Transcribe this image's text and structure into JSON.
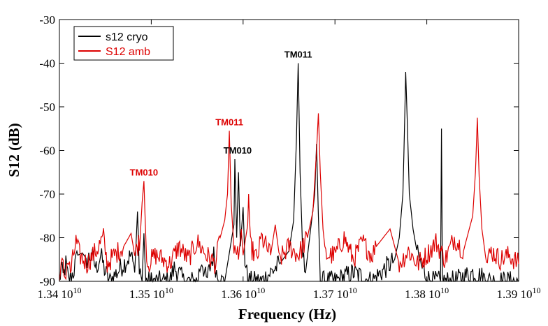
{
  "chart_data": {
    "type": "line",
    "title": "",
    "xlabel": "Frequency (Hz)",
    "ylabel": "S12 (dB)",
    "xlim": [
      13400000000,
      13900000000
    ],
    "ylim": [
      -90,
      -30
    ],
    "grid": false,
    "x_ticks": [
      {
        "value": 13400000000,
        "mantissa": "1.34",
        "base": "10",
        "exponent": "10"
      },
      {
        "value": 13500000000,
        "mantissa": "1.35",
        "base": "10",
        "exponent": "10"
      },
      {
        "value": 13600000000,
        "mantissa": "1.36",
        "base": "10",
        "exponent": "10"
      },
      {
        "value": 13700000000,
        "mantissa": "1.37",
        "base": "10",
        "exponent": "10"
      },
      {
        "value": 13800000000,
        "mantissa": "1.38",
        "base": "10",
        "exponent": "10"
      },
      {
        "value": 13900000000,
        "mantissa": "1.39",
        "base": "10",
        "exponent": "10"
      }
    ],
    "y_ticks": [
      {
        "value": -30,
        "label": "-30"
      },
      {
        "value": -40,
        "label": "-40"
      },
      {
        "value": -50,
        "label": "-50"
      },
      {
        "value": -60,
        "label": "-60"
      },
      {
        "value": -70,
        "label": "-70"
      },
      {
        "value": -80,
        "label": "-80"
      },
      {
        "value": -90,
        "label": "-90"
      }
    ],
    "legend": {
      "placement": "top-left"
    },
    "series": [
      {
        "name": "s12 cryo",
        "color": "#000000",
        "noise_floor": -90,
        "points": [
          [
            13400000000,
            -90
          ],
          [
            13402000000,
            -87
          ],
          [
            13404000000,
            -89
          ],
          [
            13407000000,
            -86
          ],
          [
            13410000000,
            -90
          ],
          [
            13415000000,
            -88
          ],
          [
            13420000000,
            -84
          ],
          [
            13425000000,
            -83.5
          ],
          [
            13430000000,
            -85
          ],
          [
            13435000000,
            -84
          ],
          [
            13440000000,
            -87
          ],
          [
            13445000000,
            -84
          ],
          [
            13450000000,
            -88
          ],
          [
            13455000000,
            -90
          ],
          [
            13470000000,
            -86
          ],
          [
            13478000000,
            -84
          ],
          [
            13482000000,
            -88
          ],
          [
            13485000000,
            -74
          ],
          [
            13487000000,
            -86
          ],
          [
            13490000000,
            -90
          ],
          [
            13492000000,
            -79
          ],
          [
            13494000000,
            -90
          ],
          [
            13500000000,
            -90
          ],
          [
            13520000000,
            -90
          ],
          [
            13525000000,
            -87
          ],
          [
            13530000000,
            -88
          ],
          [
            13535000000,
            -90
          ],
          [
            13550000000,
            -90
          ],
          [
            13555000000,
            -85
          ],
          [
            13560000000,
            -90
          ],
          [
            13565000000,
            -86
          ],
          [
            13568000000,
            -84
          ],
          [
            13571000000,
            -88
          ],
          [
            13574000000,
            -90
          ],
          [
            13580000000,
            -90
          ],
          [
            13590000000,
            -77
          ],
          [
            13591000000,
            -62
          ],
          [
            13593000000,
            -80
          ],
          [
            13595000000,
            -65
          ],
          [
            13597000000,
            -82
          ],
          [
            13600000000,
            -73
          ],
          [
            13602000000,
            -85
          ],
          [
            13605000000,
            -90
          ],
          [
            13620000000,
            -90
          ],
          [
            13640000000,
            -86
          ],
          [
            13650000000,
            -83
          ],
          [
            13655000000,
            -76
          ],
          [
            13658000000,
            -58
          ],
          [
            13660000000,
            -40
          ],
          [
            13662000000,
            -65
          ],
          [
            13665000000,
            -84
          ],
          [
            13668000000,
            -88
          ],
          [
            13678000000,
            -70
          ],
          [
            13680000000,
            -58.5
          ],
          [
            13682000000,
            -75
          ],
          [
            13684000000,
            -89
          ],
          [
            13686000000,
            -90
          ],
          [
            13700000000,
            -90
          ],
          [
            13720000000,
            -88
          ],
          [
            13740000000,
            -90
          ],
          [
            13760000000,
            -86
          ],
          [
            13765000000,
            -85
          ],
          [
            13770000000,
            -80
          ],
          [
            13774000000,
            -70
          ],
          [
            13776000000,
            -52
          ],
          [
            13777000000,
            -42
          ],
          [
            13779000000,
            -55
          ],
          [
            13781000000,
            -70
          ],
          [
            13785000000,
            -78
          ],
          [
            13790000000,
            -84
          ],
          [
            13795000000,
            -87
          ],
          [
            13800000000,
            -89
          ],
          [
            13805000000,
            -90
          ],
          [
            13815000000,
            -90
          ],
          [
            13816000000,
            -55
          ],
          [
            13817000000,
            -90
          ],
          [
            13830000000,
            -90
          ],
          [
            13850000000,
            -88
          ],
          [
            13870000000,
            -90
          ],
          [
            13900000000,
            -90
          ]
        ]
      },
      {
        "name": "S12 amb",
        "color": "#dd0000",
        "noise_floor": -86,
        "points": [
          [
            13400000000,
            -90
          ],
          [
            13403000000,
            -86
          ],
          [
            13406000000,
            -89
          ],
          [
            13409000000,
            -85
          ],
          [
            13412000000,
            -88
          ],
          [
            13418000000,
            -81
          ],
          [
            13422000000,
            -84
          ],
          [
            13430000000,
            -86
          ],
          [
            13440000000,
            -83
          ],
          [
            13448000000,
            -80
          ],
          [
            13452000000,
            -86
          ],
          [
            13460000000,
            -84
          ],
          [
            13470000000,
            -82
          ],
          [
            13478000000,
            -79
          ],
          [
            13482000000,
            -84
          ],
          [
            13488000000,
            -80
          ],
          [
            13490000000,
            -72
          ],
          [
            13492000000,
            -67
          ],
          [
            13494000000,
            -80
          ],
          [
            13496000000,
            -86
          ],
          [
            13505000000,
            -84
          ],
          [
            13520000000,
            -86
          ],
          [
            13530000000,
            -82
          ],
          [
            13540000000,
            -85
          ],
          [
            13550000000,
            -81
          ],
          [
            13560000000,
            -84
          ],
          [
            13570000000,
            -86
          ],
          [
            13575000000,
            -80
          ],
          [
            13580000000,
            -76
          ],
          [
            13583000000,
            -70
          ],
          [
            13585000000,
            -55.5
          ],
          [
            13587000000,
            -72
          ],
          [
            13590000000,
            -82
          ],
          [
            13595000000,
            -85
          ],
          [
            13598000000,
            -78
          ],
          [
            13600000000,
            -84
          ],
          [
            13605000000,
            -77
          ],
          [
            13606000000,
            -70
          ],
          [
            13608000000,
            -82
          ],
          [
            13615000000,
            -85
          ],
          [
            13620000000,
            -80
          ],
          [
            13630000000,
            -84
          ],
          [
            13635000000,
            -77
          ],
          [
            13640000000,
            -85
          ],
          [
            13650000000,
            -82
          ],
          [
            13660000000,
            -84
          ],
          [
            13670000000,
            -80
          ],
          [
            13676000000,
            -74
          ],
          [
            13680000000,
            -60
          ],
          [
            13682000000,
            -51.5
          ],
          [
            13684000000,
            -65
          ],
          [
            13687000000,
            -78
          ],
          [
            13690000000,
            -84
          ],
          [
            13700000000,
            -84
          ],
          [
            13710000000,
            -80
          ],
          [
            13720000000,
            -85
          ],
          [
            13730000000,
            -81
          ],
          [
            13740000000,
            -84
          ],
          [
            13745000000,
            -82
          ],
          [
            13760000000,
            -78
          ],
          [
            13770000000,
            -86
          ],
          [
            13780000000,
            -83
          ],
          [
            13790000000,
            -86
          ],
          [
            13800000000,
            -84
          ],
          [
            13810000000,
            -81
          ],
          [
            13820000000,
            -85
          ],
          [
            13830000000,
            -80
          ],
          [
            13840000000,
            -83
          ],
          [
            13850000000,
            -75
          ],
          [
            13853000000,
            -65
          ],
          [
            13855000000,
            -52.5
          ],
          [
            13857000000,
            -66
          ],
          [
            13860000000,
            -78
          ],
          [
            13865000000,
            -86
          ],
          [
            13870000000,
            -83
          ],
          [
            13880000000,
            -85
          ],
          [
            13890000000,
            -84
          ],
          [
            13900000000,
            -86
          ]
        ]
      }
    ],
    "annotations": [
      {
        "text": "TM010",
        "x": 13492000000,
        "y": -67,
        "color": "#dd0000"
      },
      {
        "text": "TM011",
        "x": 13585000000,
        "y": -55.5,
        "color": "#dd0000"
      },
      {
        "text": "TM010",
        "x": 13594000000,
        "y": -62,
        "color": "#000000"
      },
      {
        "text": "TM011",
        "x": 13660000000,
        "y": -40,
        "color": "#000000"
      }
    ]
  }
}
